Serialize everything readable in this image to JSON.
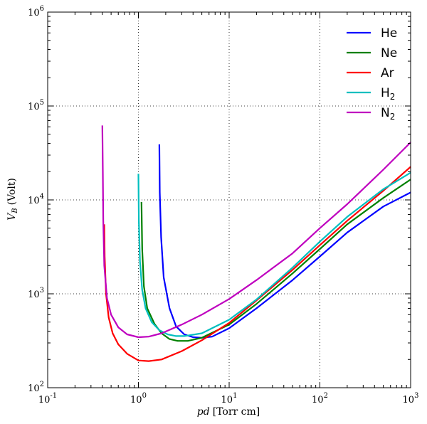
{
  "chart_data": {
    "type": "line",
    "xlabel_var": "pd",
    "xlabel_unit": "[Torr cm]",
    "ylabel_var": "V",
    "ylabel_sub": "B",
    "ylabel_unit": "(Volt)",
    "xscale": "log",
    "yscale": "log",
    "xlim": [
      0.1,
      1000
    ],
    "ylim": [
      100,
      1000000
    ],
    "grid": true,
    "legend_position": "top-right",
    "x_ticks": [
      {
        "value": 0.1,
        "base": "10",
        "exp": "-1"
      },
      {
        "value": 1,
        "base": "10",
        "exp": "0"
      },
      {
        "value": 10,
        "base": "10",
        "exp": "1"
      },
      {
        "value": 100,
        "base": "10",
        "exp": "2"
      },
      {
        "value": 1000,
        "base": "10",
        "exp": "3"
      }
    ],
    "y_ticks": [
      {
        "value": 100,
        "base": "10",
        "exp": "2"
      },
      {
        "value": 1000,
        "base": "10",
        "exp": "3"
      },
      {
        "value": 10000,
        "base": "10",
        "exp": "4"
      },
      {
        "value": 100000,
        "base": "10",
        "exp": "5"
      },
      {
        "value": 1000000,
        "base": "10",
        "exp": "6"
      }
    ],
    "series": [
      {
        "name": "He",
        "label": "He",
        "sub": "",
        "color": "#0000ff",
        "x": [
          1.7,
          1.72,
          1.78,
          1.9,
          2.2,
          2.6,
          3.2,
          4.0,
          5.0,
          6.5,
          10,
          20,
          50,
          100,
          200,
          500,
          1000
        ],
        "y": [
          39000,
          12000,
          4000,
          1500,
          700,
          450,
          370,
          345,
          340,
          350,
          430,
          700,
          1400,
          2500,
          4500,
          8500,
          12000
        ]
      },
      {
        "name": "Ne",
        "label": "Ne",
        "sub": "",
        "color": "#008000",
        "x": [
          1.08,
          1.1,
          1.15,
          1.25,
          1.5,
          1.8,
          2.2,
          2.7,
          3.5,
          5,
          10,
          20,
          50,
          100,
          200,
          500,
          1000
        ],
        "y": [
          9500,
          3000,
          1200,
          700,
          480,
          380,
          330,
          315,
          315,
          340,
          470,
          780,
          1650,
          3000,
          5500,
          10500,
          16500
        ]
      },
      {
        "name": "Ar",
        "label": "Ar",
        "sub": "",
        "color": "#ff0000",
        "x": [
          0.42,
          0.425,
          0.44,
          0.47,
          0.52,
          0.6,
          0.75,
          1.0,
          1.3,
          1.8,
          3,
          5,
          10,
          20,
          50,
          100,
          200,
          500,
          1000
        ],
        "y": [
          5500,
          2500,
          1000,
          560,
          380,
          290,
          230,
          195,
          192,
          200,
          245,
          320,
          490,
          850,
          1800,
          3300,
          6000,
          12500,
          22500
        ]
      },
      {
        "name": "H2",
        "label": "H",
        "sub": "2",
        "color": "#00bfbf",
        "x": [
          1.0,
          1.01,
          1.04,
          1.1,
          1.2,
          1.4,
          1.7,
          2.1,
          2.6,
          3.2,
          5,
          10,
          20,
          50,
          100,
          200,
          500,
          1000
        ],
        "y": [
          19000,
          6000,
          2200,
          1100,
          700,
          500,
          410,
          370,
          355,
          355,
          380,
          530,
          870,
          1900,
          3600,
          6600,
          13000,
          19500
        ]
      },
      {
        "name": "N2",
        "label": "N",
        "sub": "2",
        "color": "#bf00bf",
        "x": [
          0.4,
          0.405,
          0.41,
          0.42,
          0.45,
          0.5,
          0.6,
          0.75,
          1.0,
          1.3,
          1.8,
          3,
          5,
          10,
          20,
          50,
          100,
          200,
          500,
          1000
        ],
        "y": [
          62000,
          20000,
          6000,
          2000,
          900,
          600,
          440,
          370,
          345,
          350,
          380,
          470,
          600,
          880,
          1400,
          2700,
          5000,
          9000,
          21000,
          41000
        ]
      }
    ]
  }
}
